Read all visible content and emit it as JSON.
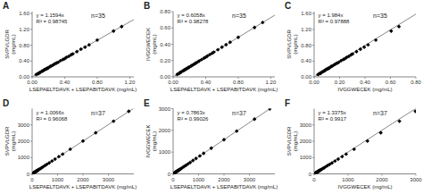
{
  "chart_data": [
    {
      "type": "scatter",
      "title": "A",
      "annotations": [
        "y = 1.1594x",
        "R² = 0.98745",
        "n=35"
      ],
      "xlabel": "LSEPAELTDAVK + LSEPABITDAVK (mg/mL)",
      "ylabel": "SVPVLGDR\n(mg/mL)",
      "xlim": [
        0,
        1.25
      ],
      "ylim": [
        0,
        1.65
      ],
      "xticks": [
        {
          "value": 0.0,
          "label": "0.00"
        },
        {
          "value": 0.4,
          "label": "0.40"
        },
        {
          "value": 0.8,
          "label": "0.80"
        },
        {
          "value": 1.2,
          "label": "1.20"
        }
      ],
      "yticks": [
        {
          "value": 0.0,
          "label": "0.00"
        },
        {
          "value": 0.4,
          "label": "0.40"
        },
        {
          "value": 0.8,
          "label": "0.80"
        },
        {
          "value": 1.2,
          "label": "1.20"
        },
        {
          "value": 1.6,
          "label": "1.60"
        }
      ],
      "series": [
        {
          "type": "scatter",
          "color": "black",
          "marker": "diamond",
          "x": [
            0.05,
            0.07,
            0.08,
            0.09,
            0.1,
            0.12,
            0.13,
            0.14,
            0.15,
            0.16,
            0.17,
            0.18,
            0.19,
            0.2,
            0.22,
            0.23,
            0.25,
            0.27,
            0.28,
            0.3,
            0.32,
            0.35,
            0.38,
            0.4,
            0.42,
            0.45,
            0.48,
            0.5,
            0.55,
            0.6,
            0.65,
            0.7,
            0.8,
            1.0,
            1.1
          ],
          "values": [
            0.06,
            0.08,
            0.09,
            0.1,
            0.12,
            0.14,
            0.15,
            0.16,
            0.18,
            0.19,
            0.2,
            0.21,
            0.22,
            0.23,
            0.26,
            0.27,
            0.29,
            0.32,
            0.33,
            0.35,
            0.37,
            0.41,
            0.44,
            0.46,
            0.49,
            0.52,
            0.56,
            0.58,
            0.64,
            0.7,
            0.75,
            0.81,
            0.93,
            1.16,
            1.27
          ]
        },
        {
          "type": "line",
          "color": "#888888",
          "slope": 1.1594,
          "intercept": 0.0
        }
      ]
    },
    {
      "type": "scatter",
      "title": "B",
      "annotations": [
        "y = 0.6058x",
        "R² = 0.98278",
        "n=35"
      ],
      "xlabel": "LSEPAELTDAVK + LSEPABITDAVK (mg/mL)",
      "ylabel": "IVGGWECEK\n(mg/mL)",
      "xlim": [
        0,
        1.25
      ],
      "ylim": [
        0,
        0.8
      ],
      "xticks": [
        {
          "value": 0.0,
          "label": "0.00"
        },
        {
          "value": 0.4,
          "label": "0.40"
        },
        {
          "value": 0.8,
          "label": "0.80"
        },
        {
          "value": 1.2,
          "label": "1.20"
        }
      ],
      "yticks": [
        {
          "value": 0.0,
          "label": "0.00"
        },
        {
          "value": 0.2,
          "label": "0.20"
        },
        {
          "value": 0.4,
          "label": "0.40"
        },
        {
          "value": 0.6,
          "label": "0.60"
        },
        {
          "value": 0.8,
          "label": "0.80"
        }
      ],
      "series": [
        {
          "type": "scatter",
          "color": "black",
          "marker": "diamond",
          "x": [
            0.05,
            0.07,
            0.08,
            0.09,
            0.1,
            0.12,
            0.13,
            0.14,
            0.15,
            0.16,
            0.17,
            0.18,
            0.19,
            0.2,
            0.22,
            0.23,
            0.25,
            0.27,
            0.28,
            0.3,
            0.32,
            0.35,
            0.38,
            0.4,
            0.42,
            0.45,
            0.48,
            0.5,
            0.55,
            0.6,
            0.65,
            0.7,
            0.8,
            1.0,
            1.1
          ],
          "values": [
            0.03,
            0.04,
            0.05,
            0.055,
            0.06,
            0.073,
            0.079,
            0.085,
            0.091,
            0.097,
            0.103,
            0.109,
            0.115,
            0.121,
            0.133,
            0.14,
            0.151,
            0.164,
            0.17,
            0.182,
            0.194,
            0.212,
            0.23,
            0.242,
            0.255,
            0.273,
            0.291,
            0.303,
            0.333,
            0.364,
            0.394,
            0.424,
            0.485,
            0.606,
            0.667
          ]
        },
        {
          "type": "line",
          "color": "#888888",
          "slope": 0.6058,
          "intercept": 0.0
        }
      ]
    },
    {
      "type": "scatter",
      "title": "C",
      "annotations": [
        "y = 1.984x",
        "R² = 0.97888",
        "n=35"
      ],
      "xlabel": "IVGGWECEK (mg/mL)",
      "ylabel": "SVPVLGDR\n(mg/mL)",
      "xlim": [
        0,
        0.8
      ],
      "ylim": [
        0,
        1.65
      ],
      "xticks": [
        {
          "value": 0.0,
          "label": "0.00"
        },
        {
          "value": 0.2,
          "label": "0.20"
        },
        {
          "value": 0.4,
          "label": "0.40"
        },
        {
          "value": 0.6,
          "label": "0.60"
        },
        {
          "value": 0.8,
          "label": "0.80"
        }
      ],
      "yticks": [
        {
          "value": 0.0,
          "label": "0.00"
        },
        {
          "value": 0.4,
          "label": "0.40"
        },
        {
          "value": 0.8,
          "label": "0.80"
        },
        {
          "value": 1.2,
          "label": "1.20"
        },
        {
          "value": 1.6,
          "label": "1.60"
        }
      ],
      "series": [
        {
          "type": "scatter",
          "color": "black",
          "marker": "diamond",
          "x": [
            0.03,
            0.04,
            0.05,
            0.055,
            0.06,
            0.073,
            0.079,
            0.085,
            0.091,
            0.097,
            0.103,
            0.109,
            0.115,
            0.121,
            0.133,
            0.14,
            0.151,
            0.164,
            0.17,
            0.182,
            0.194,
            0.212,
            0.23,
            0.242,
            0.255,
            0.273,
            0.291,
            0.303,
            0.333,
            0.364,
            0.394,
            0.424,
            0.485,
            0.606,
            0.667
          ],
          "values": [
            0.06,
            0.08,
            0.09,
            0.1,
            0.12,
            0.14,
            0.15,
            0.16,
            0.18,
            0.19,
            0.2,
            0.21,
            0.22,
            0.23,
            0.26,
            0.27,
            0.29,
            0.32,
            0.33,
            0.35,
            0.37,
            0.41,
            0.44,
            0.46,
            0.49,
            0.52,
            0.56,
            0.58,
            0.64,
            0.7,
            0.75,
            0.81,
            0.93,
            1.16,
            1.27
          ]
        },
        {
          "type": "line",
          "color": "#888888",
          "slope": 1.984,
          "intercept": 0.0
        }
      ]
    },
    {
      "type": "scatter",
      "title": "D",
      "annotations": [
        "y = 1.0066x",
        "R² = 0.96068",
        "n=37"
      ],
      "xlabel": "LSEPAELTDAVK + LSEPABITDAVK (mg/mL)",
      "ylabel": "SVPVLGDR\n(mg/mL)",
      "xlim": [
        0,
        4000
      ],
      "ylim": [
        0,
        4000
      ],
      "xticks": [
        0,
        1000,
        2000,
        3000
      ],
      "yticks": [
        0,
        1000,
        2000,
        3000
      ],
      "series": [
        {
          "type": "scatter",
          "color": "black",
          "marker": "diamond",
          "x": [
            20,
            30,
            40,
            50,
            60,
            70,
            80,
            90,
            100,
            110,
            120,
            130,
            140,
            150,
            160,
            170,
            180,
            190,
            200,
            220,
            250,
            280,
            320,
            370,
            430,
            500,
            580,
            670,
            780,
            900,
            1050,
            1200,
            1500,
            2000,
            2500,
            3200,
            3800
          ],
          "values": [
            20,
            31,
            40,
            50,
            60,
            71,
            81,
            91,
            101,
            111,
            121,
            131,
            141,
            151,
            161,
            171,
            181,
            191,
            202,
            222,
            252,
            282,
            323,
            373,
            434,
            504,
            584,
            675,
            786,
            908,
            1059,
            1210,
            1513,
            2016,
            2519,
            3228,
            3834
          ]
        },
        {
          "type": "line",
          "color": "#888888",
          "slope": 1.0066,
          "intercept": 0.0
        }
      ]
    },
    {
      "type": "scatter",
      "title": "E",
      "annotations": [
        "y = 0.7863x",
        "R² = 0.99026",
        "n=37"
      ],
      "xlabel": "LSEPAELTDAVK + LSEPABITDAVK (mg/mL)",
      "ylabel": "IVGGWECEK\n(mg/mL)",
      "xlim": [
        0,
        4000
      ],
      "ylim": [
        0,
        3000
      ],
      "xticks": [
        0,
        1000,
        2000,
        3000
      ],
      "yticks": [
        0,
        1000,
        2000,
        3000
      ],
      "series": [
        {
          "type": "scatter",
          "color": "black",
          "marker": "diamond",
          "x": [
            20,
            30,
            40,
            50,
            60,
            70,
            80,
            90,
            100,
            110,
            120,
            130,
            140,
            150,
            160,
            170,
            180,
            190,
            200,
            220,
            250,
            280,
            320,
            370,
            430,
            500,
            580,
            670,
            780,
            900,
            1050,
            1200,
            1500,
            2000,
            2500,
            3200,
            3800
          ],
          "values": [
            16,
            24,
            31,
            39,
            47,
            55,
            63,
            71,
            79,
            87,
            94,
            102,
            110,
            118,
            126,
            134,
            142,
            149,
            157,
            173,
            197,
            220,
            252,
            291,
            338,
            393,
            456,
            527,
            614,
            708,
            826,
            944,
            1179,
            1573,
            1966,
            2516,
            2988
          ]
        },
        {
          "type": "line",
          "color": "#888888",
          "slope": 0.7863,
          "intercept": 0.0
        }
      ]
    },
    {
      "type": "scatter",
      "title": "F",
      "annotations": [
        "y = 1.3375x",
        "R² = 0.9917",
        "n=37"
      ],
      "xlabel": "IVGGWECEK (mg/mL)",
      "ylabel": "SVPVLGDR\n(mg/mL)",
      "xlim": [
        0,
        3000
      ],
      "ylim": [
        0,
        4000
      ],
      "xticks": [
        0,
        1000,
        2000,
        3000
      ],
      "yticks": [
        0,
        1000,
        2000,
        3000
      ],
      "series": [
        {
          "type": "scatter",
          "color": "black",
          "marker": "diamond",
          "x": [
            16,
            24,
            31,
            39,
            47,
            55,
            63,
            71,
            79,
            87,
            94,
            102,
            110,
            118,
            126,
            134,
            142,
            149,
            157,
            173,
            197,
            220,
            252,
            291,
            338,
            393,
            456,
            527,
            614,
            708,
            826,
            944,
            1179,
            1573,
            1966,
            2516,
            2988
          ],
          "values": [
            20,
            31,
            40,
            50,
            60,
            71,
            81,
            91,
            101,
            111,
            121,
            131,
            141,
            151,
            161,
            171,
            181,
            191,
            202,
            222,
            252,
            282,
            323,
            373,
            434,
            504,
            584,
            675,
            786,
            908,
            1059,
            1210,
            1513,
            2016,
            2519,
            3228,
            3834
          ]
        },
        {
          "type": "line",
          "color": "#888888",
          "slope": 1.3375,
          "intercept": 0.0
        }
      ]
    }
  ]
}
